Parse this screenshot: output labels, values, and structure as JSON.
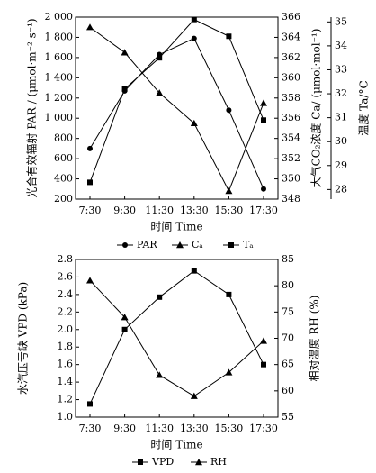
{
  "chart_data": [
    {
      "type": "line",
      "categories": [
        "7:30",
        "9:30",
        "11:30",
        "13:30",
        "15:30",
        "17:30"
      ],
      "xlabel": "时间 Time",
      "axes": [
        {
          "id": "left",
          "label": "光合有效辐射 PAR / (μmol·m⁻² s⁻¹)",
          "range": [
            200,
            2000
          ],
          "ticks": [
            "200",
            "400",
            "600",
            "800",
            "1 000",
            "1 200",
            "1 400",
            "1 600",
            "1 800",
            "2 000"
          ]
        },
        {
          "id": "right1",
          "label": "大气CO₂浓度 Ca/ (μmol·mol⁻¹)",
          "range": [
            348,
            366
          ],
          "ticks": [
            "348",
            "350",
            "352",
            "354",
            "356",
            "358",
            "360",
            "362",
            "364",
            "366"
          ]
        },
        {
          "id": "right2",
          "label": "温度 Ta/°C",
          "range": [
            27.6,
            35.2
          ],
          "ticks": [
            "28",
            "29",
            "30",
            "31",
            "32",
            "33",
            "34",
            "35"
          ]
        }
      ],
      "series": [
        {
          "name": "PAR",
          "marker": "circle",
          "axis": "left",
          "values": [
            700,
            1270,
            1630,
            1790,
            1080,
            300
          ]
        },
        {
          "name": "Cₐ",
          "marker": "triangle",
          "axis": "right1",
          "values": [
            365,
            362.5,
            358.5,
            355.5,
            348.8,
            357.5
          ]
        },
        {
          "name": "Tₐ",
          "marker": "square",
          "axis": "right2",
          "values": [
            28.3,
            32.2,
            33.5,
            35.1,
            34.4,
            30.9
          ]
        }
      ],
      "legend": {
        "position": "bottom",
        "labels": [
          "PAR",
          "Cₐ",
          "Tₐ"
        ]
      }
    },
    {
      "type": "line",
      "categories": [
        "7:30",
        "9:30",
        "11:30",
        "13:30",
        "15:30",
        "17:30"
      ],
      "xlabel": "时间 Time",
      "axes": [
        {
          "id": "left",
          "label": "水汽压亏缺 VPD (kPa)",
          "range": [
            1.0,
            2.8
          ],
          "ticks": [
            "1.0",
            "1.2",
            "1.4",
            "1.6",
            "1.8",
            "2.0",
            "2.2",
            "2.4",
            "2.6",
            "2.8"
          ]
        },
        {
          "id": "right",
          "label": "相对湿度 RH (%)",
          "range": [
            55,
            85
          ],
          "ticks": [
            "55",
            "60",
            "65",
            "70",
            "75",
            "80",
            "85"
          ]
        }
      ],
      "series": [
        {
          "name": "VPD",
          "marker": "square",
          "axis": "left",
          "values": [
            1.15,
            2.0,
            2.37,
            2.67,
            2.4,
            1.6
          ]
        },
        {
          "name": "RH",
          "marker": "triangle",
          "axis": "right",
          "values": [
            81,
            74,
            63,
            59,
            63.5,
            69.5
          ]
        }
      ],
      "legend": {
        "position": "bottom",
        "labels": [
          "VPD",
          "RH"
        ]
      }
    }
  ]
}
